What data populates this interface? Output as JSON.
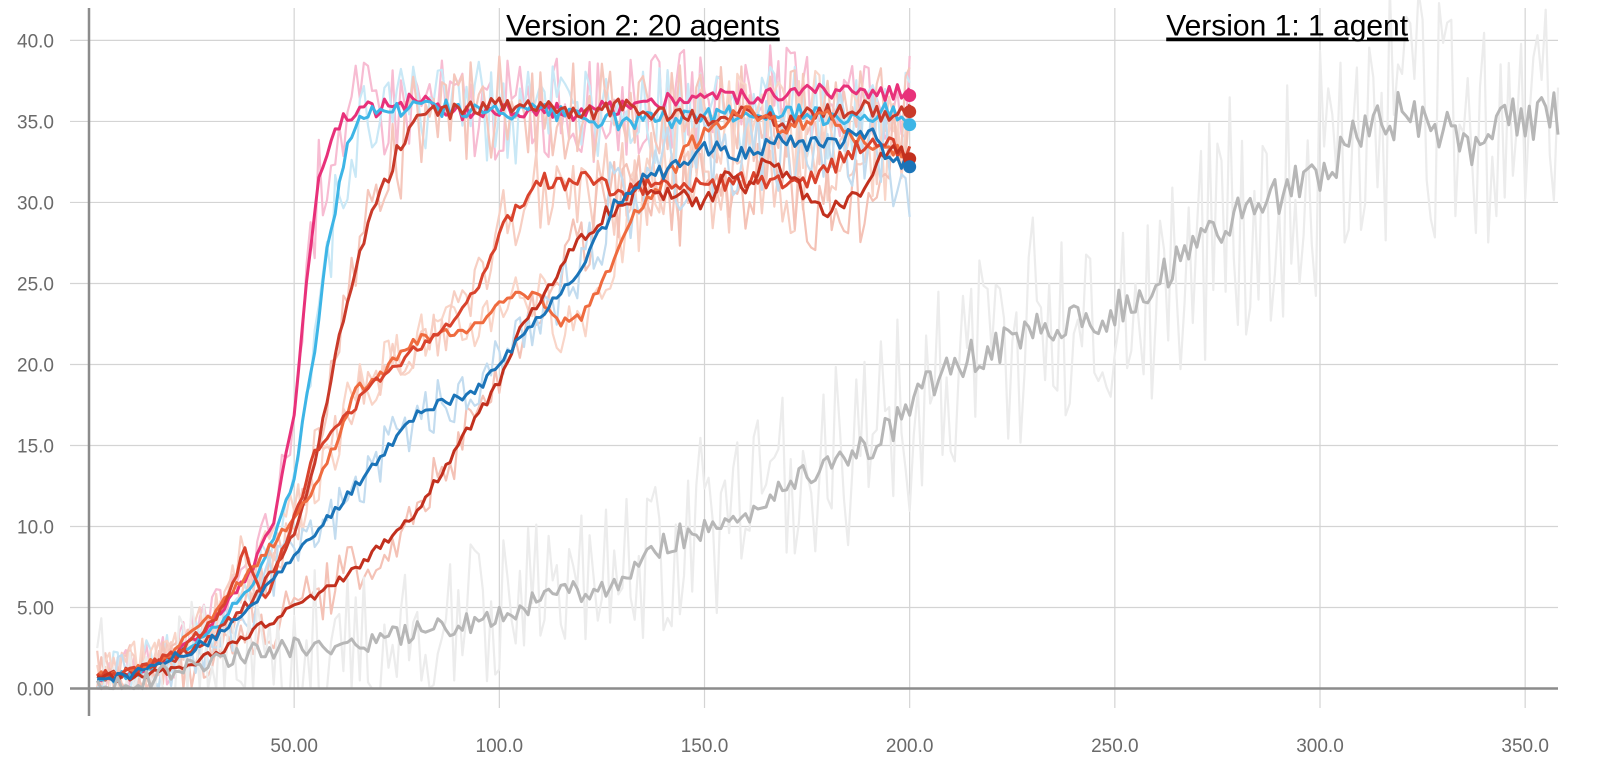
{
  "chart_data": {
    "type": "line",
    "title": "",
    "xlabel": "",
    "ylabel": "",
    "xlim": [
      0,
      358
    ],
    "ylim": [
      -1.2,
      42
    ],
    "grid": true,
    "x_ticks": [
      {
        "value": 50,
        "label": "50.00"
      },
      {
        "value": 100,
        "label": "100.0"
      },
      {
        "value": 150,
        "label": "150.0"
      },
      {
        "value": 200,
        "label": "200.0"
      },
      {
        "value": 250,
        "label": "250.0"
      },
      {
        "value": 300,
        "label": "300.0"
      },
      {
        "value": 350,
        "label": "350.0"
      }
    ],
    "y_ticks": [
      {
        "value": 0,
        "label": "0.00"
      },
      {
        "value": 5,
        "label": "5.00"
      },
      {
        "value": 10,
        "label": "10.0"
      },
      {
        "value": 15,
        "label": "15.0"
      },
      {
        "value": 20,
        "label": "20.0"
      },
      {
        "value": 25,
        "label": "25.0"
      },
      {
        "value": 30,
        "label": "30.0"
      },
      {
        "value": 35,
        "label": "35.0"
      },
      {
        "value": 40,
        "label": "40.0"
      }
    ],
    "annotations": [
      {
        "text": "Version 2: 20 agents",
        "x": 135,
        "y": 40.3
      },
      {
        "text": "Version 1: 1 agent",
        "x": 292,
        "y": 40.3
      }
    ],
    "series": [
      {
        "color": "#e8317a",
        "raw_color": "#f7bcd2",
        "end_marker": true,
        "x": [
          2,
          10,
          20,
          30,
          40,
          45,
          50,
          53,
          56,
          60,
          65,
          70,
          75,
          80,
          85,
          90,
          100,
          110,
          120,
          130,
          140,
          150,
          160,
          170,
          180,
          190,
          195,
          200
        ],
        "y": [
          0.6,
          1.0,
          2.0,
          4.0,
          7.5,
          10.5,
          17.0,
          25.0,
          31.0,
          34.5,
          35.6,
          35.8,
          35.9,
          36.3,
          36.0,
          35.6,
          35.8,
          35.8,
          35.5,
          35.9,
          36.2,
          36.5,
          36.5,
          36.6,
          36.8,
          36.5,
          36.8,
          36.6
        ]
      },
      {
        "color": "#3db5e6",
        "raw_color": "#c9e8f6",
        "end_marker": true,
        "x": [
          2,
          10,
          20,
          30,
          40,
          45,
          50,
          55,
          58,
          62,
          66,
          70,
          75,
          80,
          90,
          100,
          110,
          120,
          130,
          140,
          150,
          160,
          170,
          180,
          190,
          195,
          200
        ],
        "y": [
          0.5,
          0.9,
          1.8,
          3.5,
          6.5,
          9.5,
          13.0,
          21.0,
          27.0,
          32.5,
          35.0,
          35.8,
          35.8,
          36.0,
          35.7,
          35.5,
          35.6,
          35.2,
          35.0,
          35.1,
          35.4,
          35.4,
          35.6,
          35.3,
          35.5,
          35.7,
          34.8
        ]
      },
      {
        "color": "#c93a2a",
        "raw_color": "#f5c7bc",
        "end_marker": true,
        "x": [
          2,
          10,
          20,
          30,
          40,
          50,
          55,
          60,
          65,
          70,
          75,
          80,
          85,
          90,
          95,
          100,
          110,
          120,
          130,
          140,
          150,
          160,
          170,
          180,
          190,
          195,
          200
        ],
        "y": [
          0.7,
          1.0,
          1.8,
          3.2,
          5.5,
          9.5,
          14.0,
          20.5,
          26.0,
          30.0,
          33.0,
          35.0,
          35.5,
          35.6,
          35.8,
          36.0,
          35.8,
          35.5,
          36.0,
          35.5,
          35.2,
          35.5,
          35.0,
          35.6,
          35.8,
          35.2,
          35.6
        ]
      },
      {
        "color": "#ef6b3f",
        "raw_color": "#f9d5c8",
        "end_marker": false,
        "x": [
          2,
          10,
          20,
          30,
          40,
          45,
          50,
          55,
          60,
          65,
          70,
          75,
          80,
          85,
          90,
          95,
          100,
          105,
          110,
          115,
          120,
          125,
          130,
          135,
          140,
          150,
          160,
          170,
          180,
          190,
          200
        ],
        "y": [
          0.7,
          1.0,
          2.2,
          4.5,
          7.5,
          9.0,
          10.5,
          12.5,
          15.0,
          18.5,
          19.0,
          20.5,
          21.5,
          22.0,
          22.0,
          22.5,
          24.0,
          24.5,
          24.0,
          22.5,
          23.0,
          25.0,
          27.5,
          30.0,
          31.5,
          34.5,
          35.5,
          34.5,
          35.5,
          33.5,
          33.0
        ]
      },
      {
        "color": "#d9432d",
        "raw_color": "#f7cfc3",
        "end_marker": false,
        "x": [
          2,
          10,
          20,
          30,
          35,
          38,
          40,
          43,
          47,
          52,
          55,
          60,
          65,
          70,
          75,
          80,
          85,
          90,
          95,
          100,
          105,
          110,
          115,
          120,
          125,
          130,
          140,
          150,
          160,
          170,
          180,
          190,
          200
        ],
        "y": [
          0.8,
          1.0,
          2.0,
          4.0,
          6.5,
          8.5,
          7.0,
          5.5,
          8.5,
          12.0,
          14.5,
          16.0,
          17.5,
          19.0,
          20.0,
          21.0,
          22.0,
          23.0,
          25.0,
          28.0,
          30.0,
          31.5,
          31.0,
          31.5,
          31.0,
          30.5,
          31.5,
          31.0,
          31.5,
          31.0,
          32.0,
          34.0,
          33.0
        ]
      },
      {
        "color": "#c2301e",
        "raw_color": "#f4c2b6",
        "end_marker": true,
        "x": [
          2,
          10,
          20,
          30,
          40,
          50,
          60,
          70,
          80,
          85,
          90,
          95,
          100,
          105,
          110,
          115,
          120,
          125,
          130,
          135,
          140,
          150,
          155,
          160,
          165,
          170,
          175,
          180,
          185,
          190,
          195,
          200
        ],
        "y": [
          0.6,
          0.8,
          1.2,
          2.0,
          3.5,
          5.0,
          6.5,
          8.5,
          11.0,
          13.0,
          15.0,
          17.0,
          19.0,
          22.0,
          24.0,
          26.0,
          28.0,
          29.0,
          30.0,
          31.0,
          30.5,
          30.0,
          31.5,
          31.0,
          32.5,
          31.5,
          30.5,
          29.5,
          30.0,
          31.0,
          33.5,
          32.7
        ]
      },
      {
        "color": "#1b74b8",
        "raw_color": "#c3dcef",
        "end_marker": true,
        "x": [
          2,
          10,
          20,
          30,
          40,
          45,
          50,
          55,
          60,
          65,
          70,
          75,
          80,
          85,
          90,
          95,
          100,
          105,
          110,
          115,
          120,
          125,
          130,
          135,
          140,
          145,
          150,
          160,
          170,
          180,
          190,
          195,
          200
        ],
        "y": [
          0.4,
          0.8,
          1.8,
          3.0,
          5.0,
          7.0,
          8.0,
          9.5,
          11.0,
          12.5,
          14.0,
          15.5,
          17.0,
          17.5,
          18.0,
          18.5,
          20.0,
          21.5,
          23.0,
          24.5,
          26.0,
          28.5,
          30.5,
          31.5,
          32.0,
          32.5,
          33.5,
          33.0,
          34.0,
          33.5,
          34.5,
          32.8,
          32.2
        ]
      },
      {
        "color": "#b7b7b7",
        "raw_color": "#ececec",
        "end_marker": false,
        "x": [
          2,
          10,
          20,
          30,
          40,
          50,
          60,
          70,
          80,
          90,
          100,
          110,
          120,
          130,
          135,
          140,
          145,
          150,
          160,
          170,
          175,
          180,
          185,
          190,
          195,
          200,
          205,
          210,
          215,
          220,
          225,
          230,
          235,
          240,
          245,
          250,
          255,
          260,
          265,
          270,
          275,
          280,
          285,
          290,
          295,
          300,
          305,
          310,
          315,
          320,
          325,
          330,
          335,
          340,
          345,
          350,
          355,
          358
        ],
        "y": [
          0.0,
          0.3,
          1.0,
          1.8,
          2.2,
          2.5,
          2.8,
          3.0,
          3.5,
          4.0,
          4.5,
          5.5,
          6.0,
          6.5,
          8.0,
          9.0,
          9.5,
          10.0,
          11.0,
          12.5,
          13.0,
          14.0,
          14.5,
          15.0,
          16.0,
          17.0,
          19.0,
          20.0,
          20.5,
          21.0,
          21.5,
          22.0,
          22.5,
          23.0,
          22.5,
          23.5,
          24.0,
          25.0,
          26.5,
          27.0,
          28.0,
          29.0,
          29.5,
          30.5,
          31.0,
          32.0,
          33.0,
          34.0,
          35.0,
          35.5,
          35.0,
          34.5,
          33.5,
          34.0,
          35.0,
          35.0,
          35.2,
          35.5
        ]
      }
    ]
  }
}
